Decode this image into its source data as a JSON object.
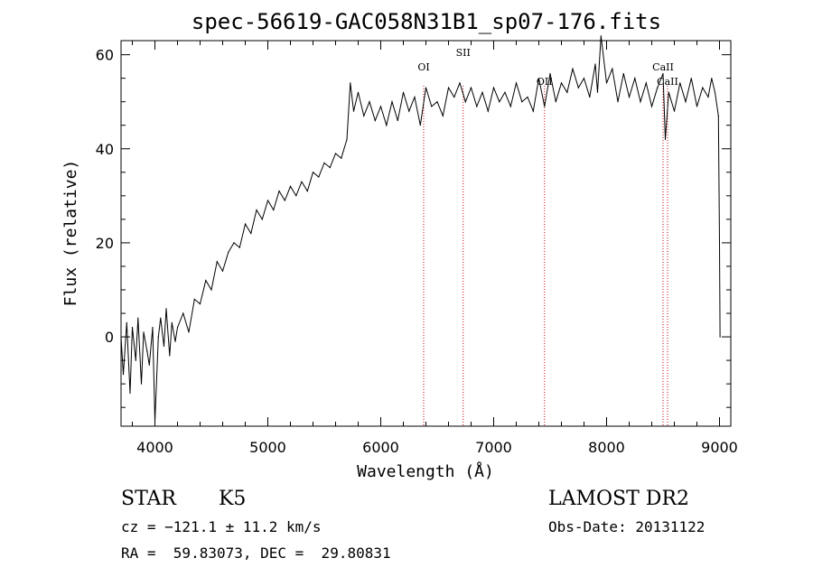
{
  "chart_data": {
    "type": "line",
    "title": "spec-56619-GAC058N31B1_sp07-176.fits",
    "xlabel": "Wavelength (Å)",
    "ylabel": "Flux (relative)",
    "xlim": [
      3700,
      9100
    ],
    "ylim": [
      -19,
      63
    ],
    "x_ticks": [
      4000,
      5000,
      6000,
      7000,
      8000,
      9000
    ],
    "y_ticks": [
      0,
      20,
      40,
      60
    ],
    "grid": false,
    "series": [
      {
        "x": [
          3700,
          3720,
          3750,
          3780,
          3800,
          3830,
          3850,
          3880,
          3900,
          3930,
          3950,
          3980,
          4000,
          4030,
          4050,
          4080,
          4100,
          4130,
          4150,
          4180,
          4200,
          4250,
          4300,
          4350,
          4400,
          4450,
          4500,
          4550,
          4600,
          4650,
          4700,
          4750,
          4800,
          4850,
          4900,
          4950,
          5000,
          5050,
          5100,
          5150,
          5200,
          5250,
          5300,
          5350,
          5400,
          5450,
          5500,
          5550,
          5600,
          5650,
          5700,
          5730,
          5760,
          5800,
          5850,
          5900,
          5950,
          6000,
          6050,
          6100,
          6150,
          6200,
          6250,
          6300,
          6350,
          6400,
          6450,
          6500,
          6550,
          6600,
          6650,
          6700,
          6750,
          6800,
          6850,
          6900,
          6950,
          7000,
          7050,
          7100,
          7150,
          7200,
          7250,
          7300,
          7350,
          7400,
          7450,
          7500,
          7550,
          7600,
          7650,
          7700,
          7750,
          7800,
          7850,
          7900,
          7920,
          7950,
          8000,
          8050,
          8100,
          8150,
          8200,
          8250,
          8300,
          8350,
          8400,
          8450,
          8500,
          8520,
          8550,
          8600,
          8650,
          8700,
          8750,
          8800,
          8850,
          8900,
          8930,
          8960,
          8990,
          9000,
          9005
        ],
        "y": [
          0,
          -8,
          3,
          -12,
          2,
          -5,
          4,
          -10,
          1,
          -3,
          -6,
          2,
          -18,
          0,
          4,
          -2,
          6,
          -4,
          3,
          -1,
          2,
          5,
          1,
          8,
          7,
          12,
          10,
          16,
          14,
          18,
          20,
          19,
          24,
          22,
          27,
          25,
          29,
          27,
          31,
          29,
          32,
          30,
          33,
          31,
          35,
          34,
          37,
          36,
          39,
          38,
          42,
          54,
          48,
          52,
          47,
          50,
          46,
          49,
          45,
          50,
          46,
          52,
          48,
          51,
          45,
          53,
          49,
          50,
          47,
          53,
          51,
          54,
          50,
          53,
          49,
          52,
          48,
          53,
          50,
          52,
          49,
          54,
          50,
          51,
          48,
          55,
          49,
          56,
          50,
          54,
          52,
          57,
          53,
          55,
          51,
          58,
          52,
          64,
          54,
          57,
          50,
          56,
          51,
          55,
          50,
          54,
          49,
          53,
          56,
          42,
          52,
          48,
          54,
          50,
          55,
          49,
          53,
          51,
          55,
          52,
          47,
          20,
          0
        ]
      }
    ],
    "annotations": [
      {
        "label": "OI",
        "x": 6380
      },
      {
        "label": "SII",
        "x": 6730
      },
      {
        "label": "OII",
        "x": 7450
      },
      {
        "label": "CaII",
        "x": 8500
      },
      {
        "label": "CaII",
        "x": 8540
      }
    ]
  },
  "info": {
    "class": "STAR",
    "subclass": "K5",
    "survey": "LAMOST DR2",
    "cz": "cz = −121.1 ± 11.2 km/s",
    "obs_date": "Obs-Date: 20131122",
    "radec": "RA =  59.83073, DEC =  29.80831"
  },
  "colors": {
    "line": "#000000",
    "annotation_line": "#cc0000",
    "frame": "#000000",
    "background": "#ffffff"
  }
}
